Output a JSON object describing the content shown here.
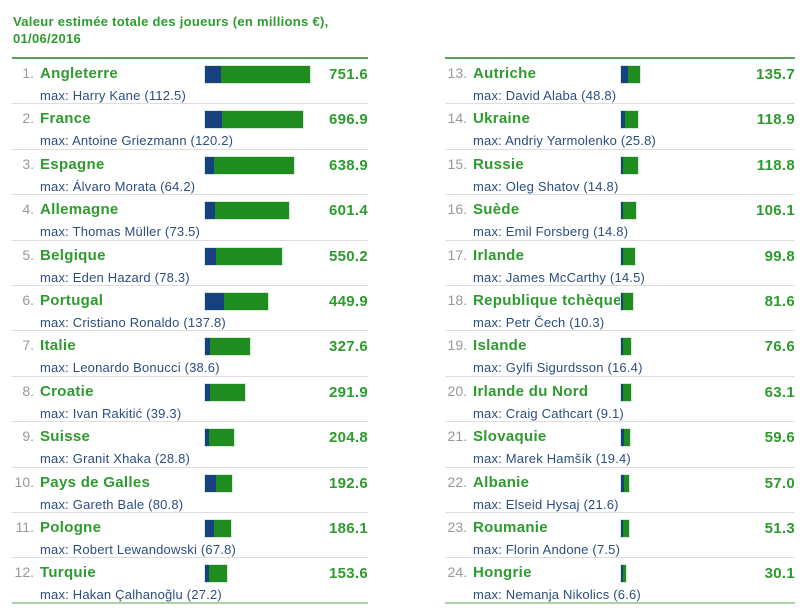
{
  "header": {
    "title_line1": "Valeur estimée totale des joueurs (en millions €),",
    "title_line2": "01/06/2016"
  },
  "colors": {
    "green_text": "#2e9b2e",
    "bar_green": "#1f8c1f",
    "bar_blue": "#17417e",
    "max_text": "#2b4d80",
    "rank_gray": "#999999",
    "row_divider": "#dddddd",
    "column_top_divider": "#5b9e5e",
    "column_bottom_divider": "#a9d2a9"
  },
  "chart_data": {
    "type": "bar",
    "title": "Valeur estimée totale des joueurs (en millions €), 01/06/2016",
    "unit": "millions €",
    "xlim": [
      0,
      751.6
    ],
    "bar_segments": [
      "max_player_value",
      "remaining_squad_value"
    ],
    "legend_position": "none",
    "teams": [
      {
        "rank_display": "1.",
        "country": "Angleterre",
        "total": 751.6,
        "total_display": "751.6",
        "max_player": "Harry Kane",
        "max_value": 112.5,
        "max_display": "max: Harry Kane (112.5)"
      },
      {
        "rank_display": "2.",
        "country": "France",
        "total": 696.9,
        "total_display": "696.9",
        "max_player": "Antoine Griezmann",
        "max_value": 120.2,
        "max_display": "max: Antoine Griezmann (120.2)"
      },
      {
        "rank_display": "3.",
        "country": "Espagne",
        "total": 638.9,
        "total_display": "638.9",
        "max_player": "Álvaro Morata",
        "max_value": 64.2,
        "max_display": "max: Álvaro Morata (64.2)"
      },
      {
        "rank_display": "4.",
        "country": "Allemagne",
        "total": 601.4,
        "total_display": "601.4",
        "max_player": "Thomas Müller",
        "max_value": 73.5,
        "max_display": "max: Thomas Müller (73.5)"
      },
      {
        "rank_display": "5.",
        "country": "Belgique",
        "total": 550.2,
        "total_display": "550.2",
        "max_player": "Eden Hazard",
        "max_value": 78.3,
        "max_display": "max: Eden Hazard (78.3)"
      },
      {
        "rank_display": "6.",
        "country": "Portugal",
        "total": 449.9,
        "total_display": "449.9",
        "max_player": "Cristiano Ronaldo",
        "max_value": 137.8,
        "max_display": "max: Cristiano Ronaldo (137.8)"
      },
      {
        "rank_display": "7.",
        "country": "Italie",
        "total": 327.6,
        "total_display": "327.6",
        "max_player": "Leonardo Bonucci",
        "max_value": 38.6,
        "max_display": "max: Leonardo Bonucci (38.6)"
      },
      {
        "rank_display": "8.",
        "country": "Croatie",
        "total": 291.9,
        "total_display": "291.9",
        "max_player": "Ivan Rakitić",
        "max_value": 39.3,
        "max_display": "max: Ivan Rakitić (39.3)"
      },
      {
        "rank_display": "9.",
        "country": "Suisse",
        "total": 204.8,
        "total_display": "204.8",
        "max_player": "Granit Xhaka",
        "max_value": 28.8,
        "max_display": "max: Granit Xhaka (28.8)"
      },
      {
        "rank_display": "10.",
        "country": "Pays de Galles",
        "total": 192.6,
        "total_display": "192.6",
        "max_player": "Gareth Bale",
        "max_value": 80.8,
        "max_display": "max: Gareth Bale (80.8)"
      },
      {
        "rank_display": "11.",
        "country": "Pologne",
        "total": 186.1,
        "total_display": "186.1",
        "max_player": "Robert Lewandowski",
        "max_value": 67.8,
        "max_display": "max: Robert Lewandowski (67.8)"
      },
      {
        "rank_display": "12.",
        "country": "Turquie",
        "total": 153.6,
        "total_display": "153.6",
        "max_player": "Hakan Çalhanoğlu",
        "max_value": 27.2,
        "max_display": "max: Hakan Çalhanoğlu (27.2)"
      },
      {
        "rank_display": "13.",
        "country": "Autriche",
        "total": 135.7,
        "total_display": "135.7",
        "max_player": "David Alaba",
        "max_value": 48.8,
        "max_display": "max: David Alaba (48.8)"
      },
      {
        "rank_display": "14.",
        "country": "Ukraine",
        "total": 118.9,
        "total_display": "118.9",
        "max_player": "Andriy Yarmolenko",
        "max_value": 25.8,
        "max_display": "max: Andriy Yarmolenko (25.8)"
      },
      {
        "rank_display": "15.",
        "country": "Russie",
        "total": 118.8,
        "total_display": "118.8",
        "max_player": "Oleg Shatov",
        "max_value": 14.8,
        "max_display": "max: Oleg Shatov (14.8)"
      },
      {
        "rank_display": "16.",
        "country": "Suède",
        "total": 106.1,
        "total_display": "106.1",
        "max_player": "Emil Forsberg",
        "max_value": 14.8,
        "max_display": "max: Emil Forsberg (14.8)"
      },
      {
        "rank_display": "17.",
        "country": "Irlande",
        "total": 99.8,
        "total_display": "99.8",
        "max_player": "James McCarthy",
        "max_value": 14.5,
        "max_display": "max: James McCarthy (14.5)"
      },
      {
        "rank_display": "18.",
        "country": "Republique tchèque",
        "total": 81.6,
        "total_display": "81.6",
        "max_player": "Petr Čech",
        "max_value": 10.3,
        "max_display": "max: Petr Čech (10.3)"
      },
      {
        "rank_display": "19.",
        "country": "Islande",
        "total": 76.6,
        "total_display": "76.6",
        "max_player": "Gylfi Sigurdsson",
        "max_value": 16.4,
        "max_display": "max: Gylfi Sigurdsson (16.4)"
      },
      {
        "rank_display": "20.",
        "country": "Irlande du Nord",
        "total": 63.1,
        "total_display": "63.1",
        "max_player": "Craig Cathcart",
        "max_value": 9.1,
        "max_display": "max: Craig Cathcart (9.1)"
      },
      {
        "rank_display": "21.",
        "country": "Slovaquie",
        "total": 59.6,
        "total_display": "59.6",
        "max_player": "Marek Hamšík",
        "max_value": 19.4,
        "max_display": "max: Marek Hamšík (19.4)"
      },
      {
        "rank_display": "22.",
        "country": "Albanie",
        "total": 57.0,
        "total_display": "57.0",
        "max_player": "Elseid Hysaj",
        "max_value": 21.6,
        "max_display": "max: Elseid Hysaj (21.6)"
      },
      {
        "rank_display": "23.",
        "country": "Roumanie",
        "total": 51.3,
        "total_display": "51.3",
        "max_player": "Florin Andone",
        "max_value": 7.5,
        "max_display": "max: Florin Andone (7.5)"
      },
      {
        "rank_display": "24.",
        "country": "Hongrie",
        "total": 30.1,
        "total_display": "30.1",
        "max_player": "Nemanja Nikolics",
        "max_value": 6.6,
        "max_display": "max: Nemanja Nikolics (6.6)"
      }
    ]
  }
}
